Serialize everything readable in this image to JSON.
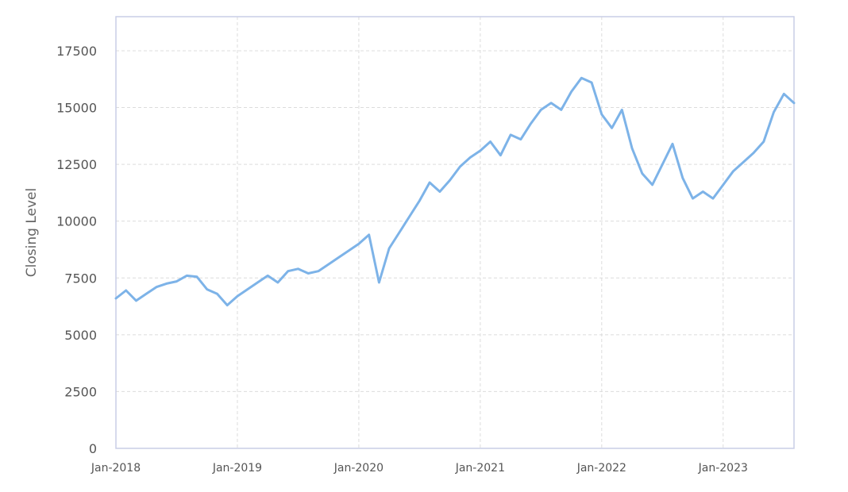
{
  "chart_data": {
    "type": "line",
    "title": "",
    "xlabel": "",
    "ylabel": "Closing Level",
    "ylim": [
      0,
      19000
    ],
    "xlim": [
      "2018-01",
      "2023-08"
    ],
    "grid": true,
    "y_ticks": [
      0,
      2500,
      5000,
      7500,
      10000,
      12500,
      15000,
      17500
    ],
    "y_tick_labels": [
      "0",
      "2500",
      "5000",
      "7500",
      "10000",
      "12500",
      "15000",
      "17500"
    ],
    "x_ticks": [
      "2018-01",
      "2019-01",
      "2020-01",
      "2021-01",
      "2022-01",
      "2023-01"
    ],
    "x_tick_labels": [
      "Jan-2018",
      "Jan-2019",
      "Jan-2020",
      "Jan-2021",
      "Jan-2022",
      "Jan-2023"
    ],
    "series": [
      {
        "color": "#7db3e8",
        "x": [
          "2018-01",
          "2018-02",
          "2018-03",
          "2018-04",
          "2018-05",
          "2018-06",
          "2018-07",
          "2018-08",
          "2018-09",
          "2018-10",
          "2018-11",
          "2018-12",
          "2019-01",
          "2019-02",
          "2019-03",
          "2019-04",
          "2019-05",
          "2019-06",
          "2019-07",
          "2019-08",
          "2019-09",
          "2019-10",
          "2019-11",
          "2019-12",
          "2020-01",
          "2020-02",
          "2020-03",
          "2020-04",
          "2020-05",
          "2020-06",
          "2020-07",
          "2020-08",
          "2020-09",
          "2020-10",
          "2020-11",
          "2020-12",
          "2021-01",
          "2021-02",
          "2021-03",
          "2021-04",
          "2021-05",
          "2021-06",
          "2021-07",
          "2021-08",
          "2021-09",
          "2021-10",
          "2021-11",
          "2021-12",
          "2022-01",
          "2022-02",
          "2022-03",
          "2022-04",
          "2022-05",
          "2022-06",
          "2022-07",
          "2022-08",
          "2022-09",
          "2022-10",
          "2022-11",
          "2022-12",
          "2023-01",
          "2023-02",
          "2023-03",
          "2023-04",
          "2023-05",
          "2023-06",
          "2023-07",
          "2023-08"
        ],
        "values": [
          6600,
          6950,
          6500,
          6800,
          7100,
          7250,
          7350,
          7600,
          7550,
          7000,
          6800,
          6300,
          6700,
          7000,
          7300,
          7600,
          7300,
          7800,
          7900,
          7700,
          7800,
          8100,
          8400,
          8700,
          9000,
          9400,
          7300,
          8800,
          9500,
          10200,
          10900,
          11700,
          11300,
          11800,
          12400,
          12800,
          13100,
          13500,
          12900,
          13800,
          13600,
          14300,
          14900,
          15200,
          14900,
          15700,
          16300,
          16100,
          14700,
          14100,
          14900,
          13200,
          12100,
          11600,
          12500,
          13400,
          11900,
          11000,
          11300,
          11000,
          11600,
          12200,
          12600,
          13000,
          13500,
          14800,
          15600,
          15200
        ]
      }
    ]
  }
}
